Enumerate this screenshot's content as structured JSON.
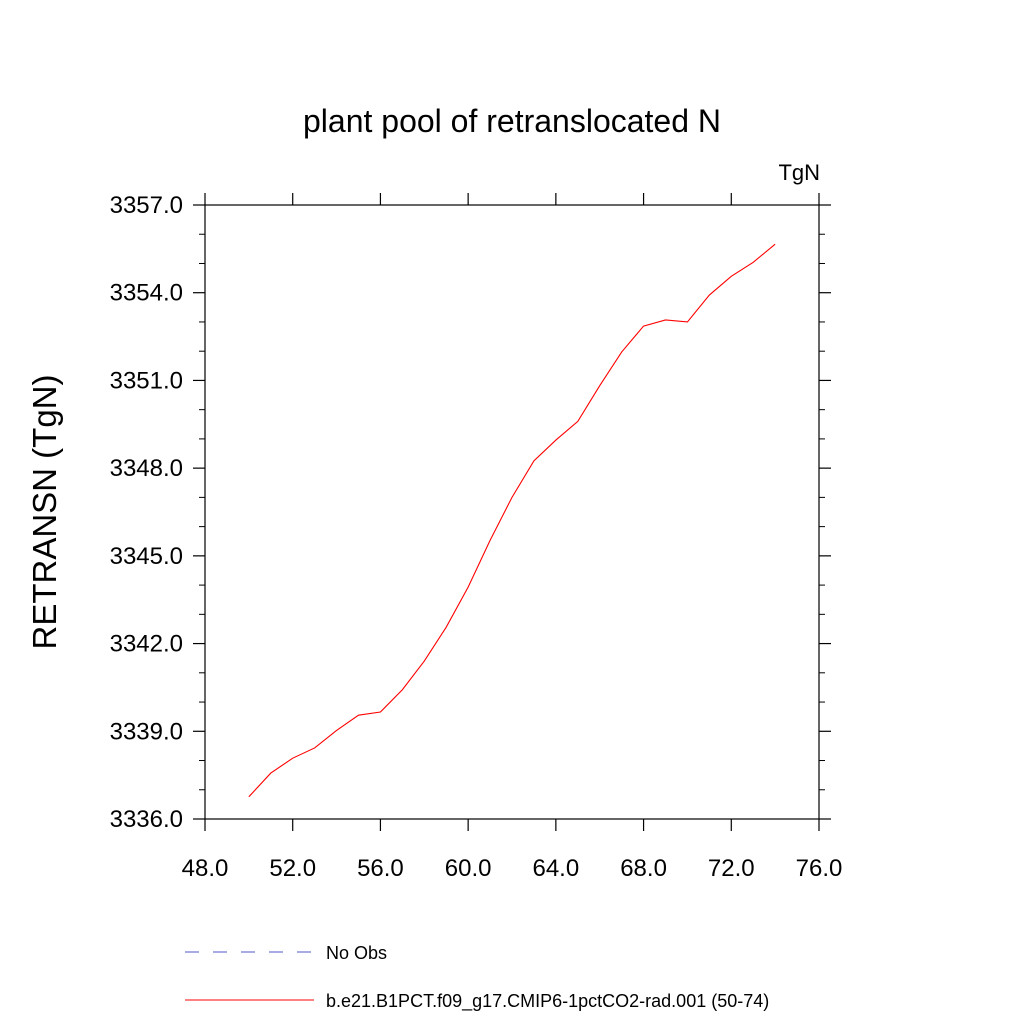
{
  "chart_data": {
    "type": "line",
    "title": "plant pool of retranslocated N",
    "units_label": "TgN",
    "xlabel": "",
    "ylabel": "RETRANSN  (TgN)",
    "xlim": [
      48,
      76
    ],
    "ylim": [
      3336,
      3357
    ],
    "x_ticks": [
      "48.0",
      "52.0",
      "56.0",
      "60.0",
      "64.0",
      "68.0",
      "72.0",
      "76.0"
    ],
    "y_ticks": [
      "3336.0",
      "3339.0",
      "3342.0",
      "3345.0",
      "3348.0",
      "3351.0",
      "3354.0",
      "3357.0"
    ],
    "grid": false,
    "legend_position": "bottom",
    "series": [
      {
        "name": "No Obs",
        "color": "#5555cc",
        "style": "dashed",
        "x": [],
        "y": []
      },
      {
        "name": "b.e21.B1PCT.f09_g17.CMIP6-1pctCO2-rad.001 (50-74)",
        "color": "#ff0000",
        "style": "solid",
        "x": [
          50,
          51,
          52,
          53,
          54,
          55,
          56,
          57,
          58,
          59,
          60,
          61,
          62,
          63,
          64,
          65,
          66,
          67,
          68,
          69,
          70,
          71,
          72,
          73,
          74
        ],
        "y": [
          3336.76,
          3337.57,
          3338.08,
          3338.43,
          3339.03,
          3339.55,
          3339.66,
          3340.42,
          3341.4,
          3342.56,
          3343.93,
          3345.53,
          3347.0,
          3348.25,
          3348.96,
          3349.6,
          3350.82,
          3351.97,
          3352.86,
          3353.07,
          3353.0,
          3353.92,
          3354.56,
          3355.04,
          3355.66
        ]
      }
    ]
  }
}
